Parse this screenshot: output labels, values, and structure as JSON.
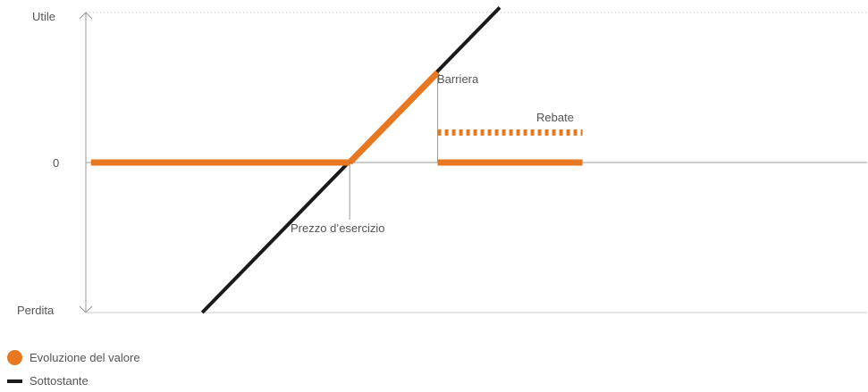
{
  "chart_data": {
    "type": "line",
    "xlabel": "",
    "ylabel": "",
    "y_axis": {
      "top_label": "Utile",
      "zero_label": "0",
      "bottom_label": "Perdita"
    },
    "series": [
      {
        "name": "Evoluzione del valore",
        "color": "#E87722",
        "segments": [
          [
            [
              0,
              0
            ],
            [
              10,
              0
            ]
          ],
          [
            [
              10,
              0
            ],
            [
              13.4,
              3.6
            ]
          ],
          [
            [
              13.4,
              0
            ],
            [
              19,
              0
            ]
          ]
        ]
      },
      {
        "name": "Sottostante",
        "color": "#1a1a1a",
        "segments": [
          [
            [
              4.3,
              -6
            ],
            [
              15.8,
              6.2
            ]
          ]
        ]
      },
      {
        "name": "Rebate",
        "color": "#E87722",
        "style": "dashed",
        "segments": [
          [
            [
              13.4,
              1.2
            ],
            [
              19,
              1.2
            ]
          ]
        ]
      }
    ],
    "annotations": {
      "barrier": "Barriera",
      "rebate": "Rebate",
      "strike": "Prezzo d’esercizio"
    },
    "xlim": [
      -0.2,
      30
    ],
    "ylim": [
      -6,
      6
    ]
  },
  "legend": {
    "value": {
      "label": "Evoluzione del valore",
      "color": "#E87722"
    },
    "underlying": {
      "label": "Sottostante",
      "color": "#1a1a1a"
    }
  }
}
